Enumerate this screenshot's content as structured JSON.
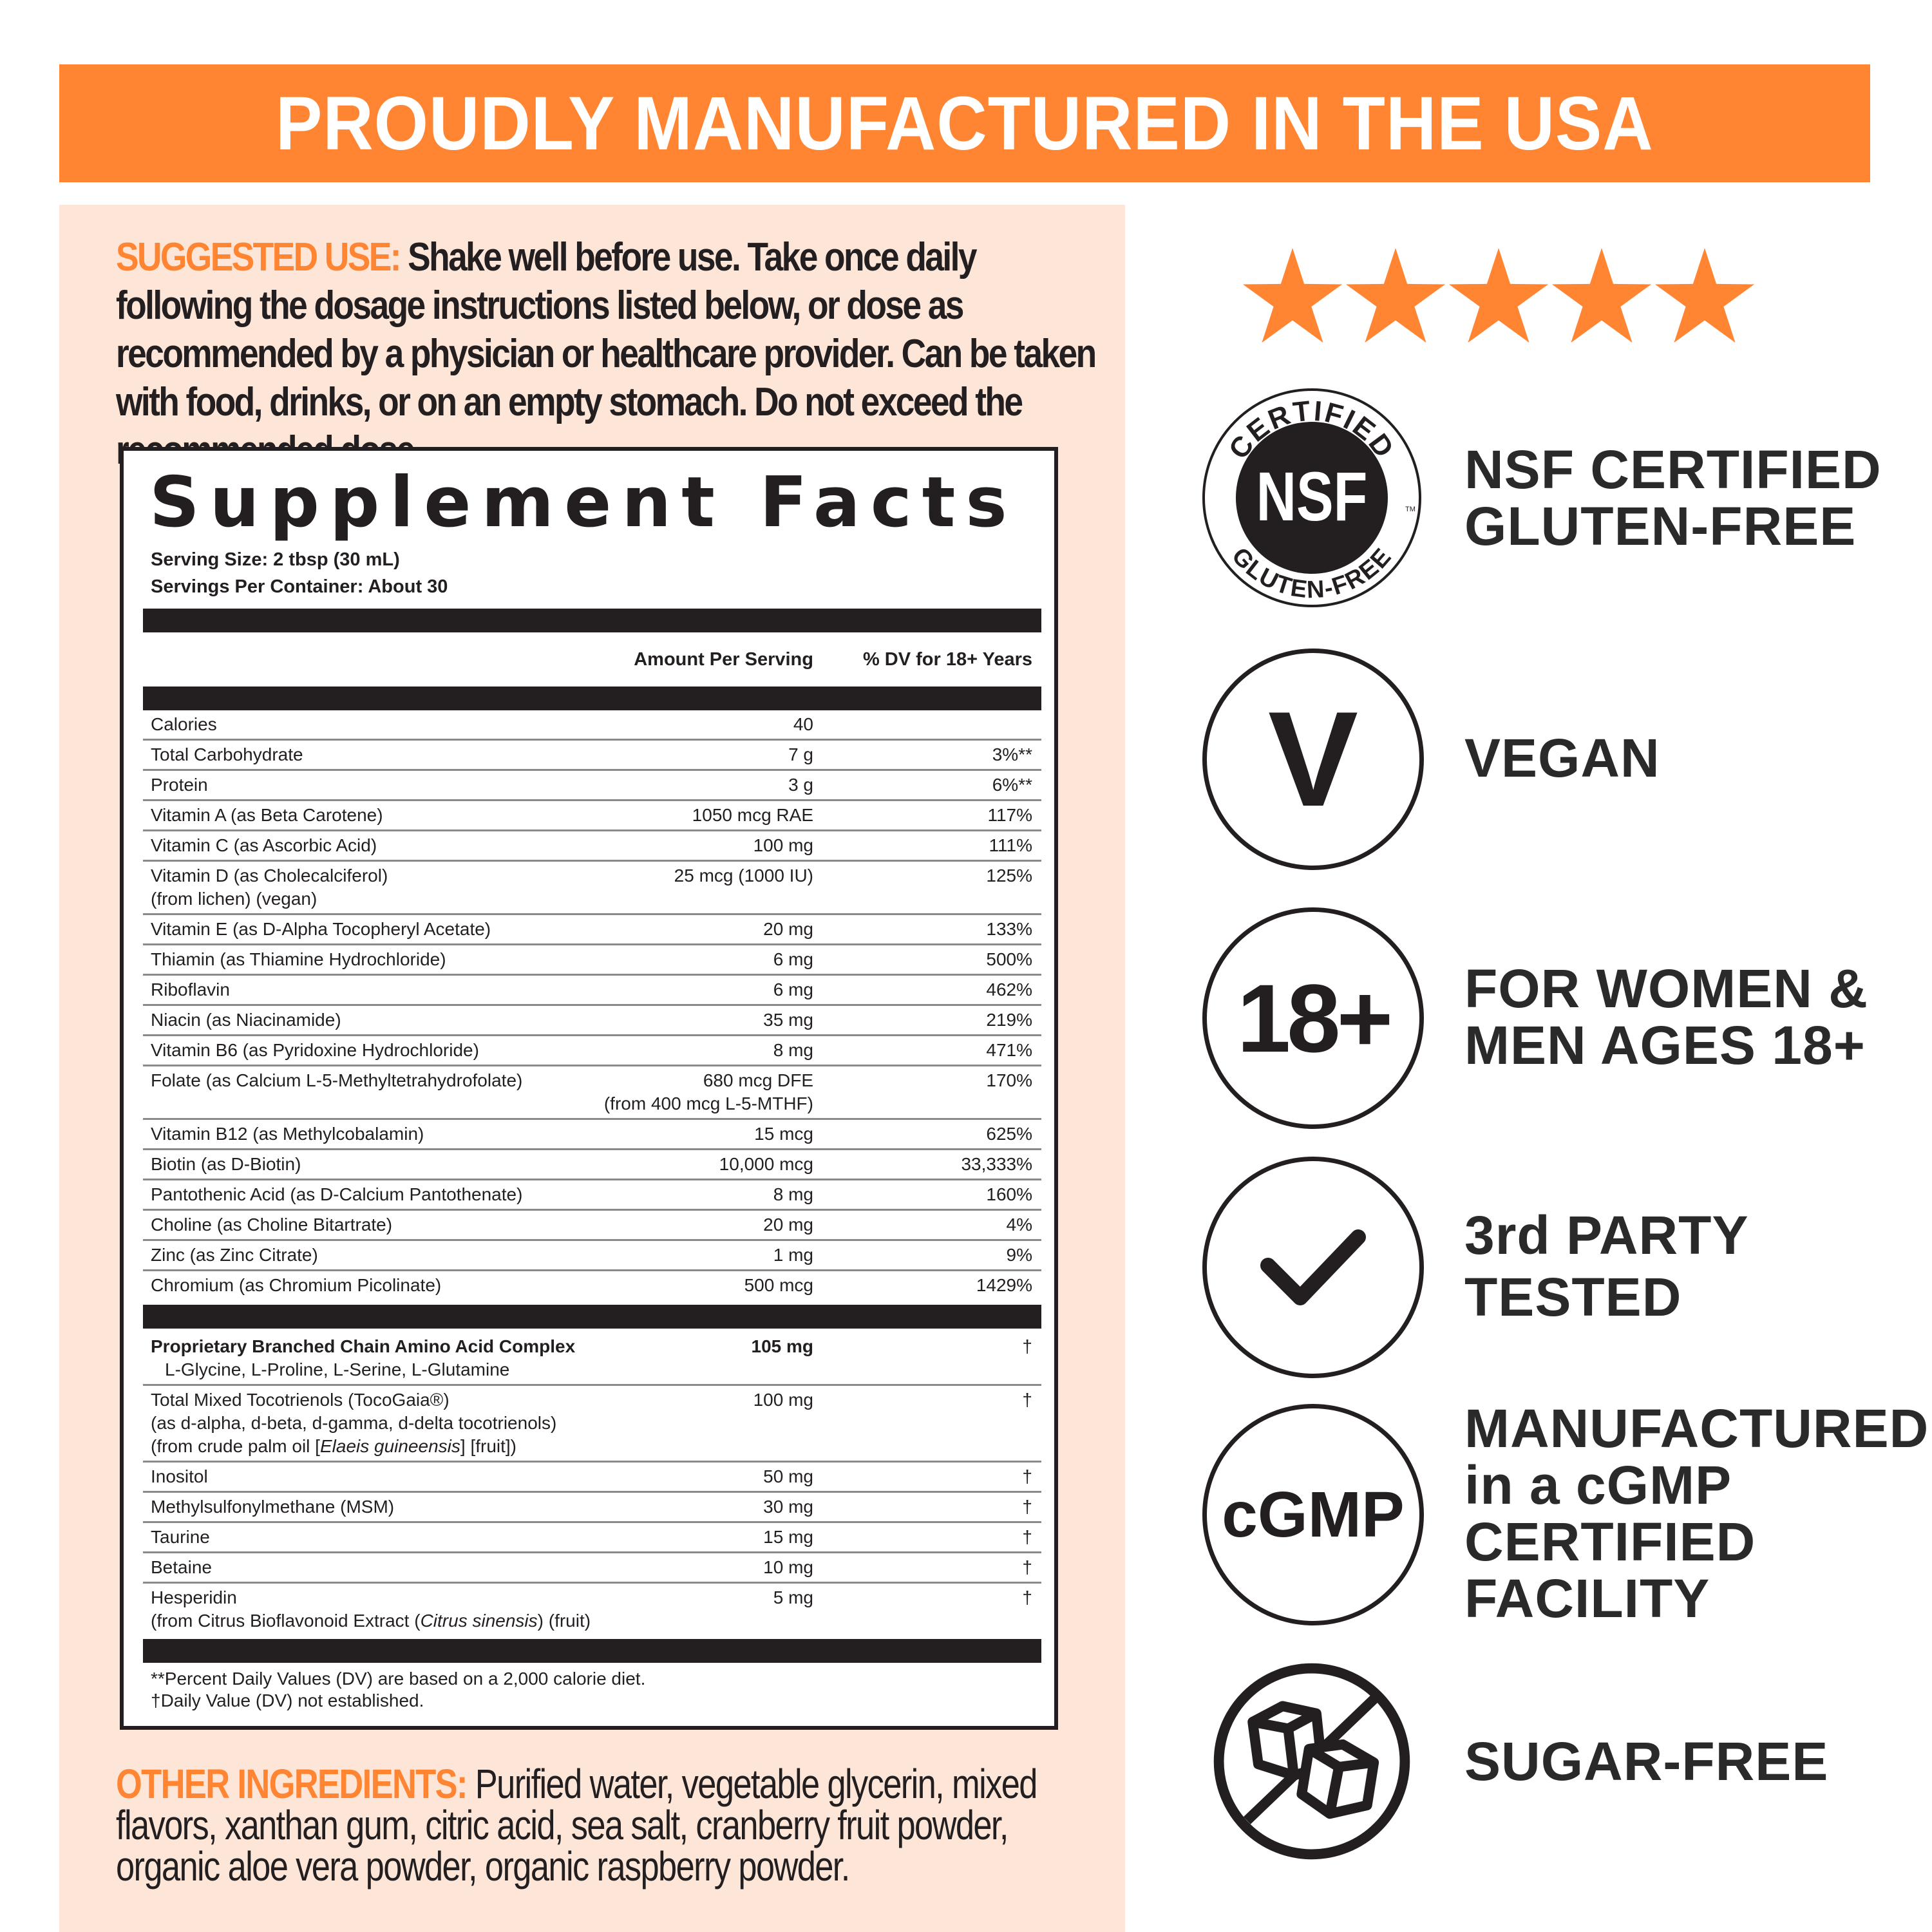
{
  "banner": {
    "text": "PROUDLY MANUFACTURED IN THE USA"
  },
  "colors": {
    "accent": "#ff8533",
    "panel": "#fde6d8",
    "ink": "#231f20"
  },
  "suggested_use": {
    "label": "SUGGESTED USE:",
    "text": " Shake well before use. Take once daily following the dosage instructions listed below, or dose as recommended by a physician or healthcare provider. Can be taken with food, drinks, or on an empty stomach. Do  not exceed the recommended dose."
  },
  "facts": {
    "title": "Supplement Facts",
    "serving_size": "Serving Size: 2 tbsp (30 mL)",
    "servings_per_container": "Servings Per Container: About 30",
    "col_amount": "Amount Per Serving",
    "col_dv": "% DV for 18+ Years",
    "rows": [
      {
        "name": [
          [
            {
              "t": "Calories"
            }
          ]
        ],
        "amount": [
          "40"
        ],
        "dv": ""
      },
      {
        "name": [
          [
            {
              "t": "Total Carbohydrate"
            }
          ]
        ],
        "amount": [
          "7 g"
        ],
        "dv": "3%**"
      },
      {
        "name": [
          [
            {
              "t": "Protein"
            }
          ]
        ],
        "amount": [
          "3 g"
        ],
        "dv": "6%**"
      },
      {
        "name": [
          [
            {
              "t": "Vitamin A (as Beta Carotene)"
            }
          ]
        ],
        "amount": [
          "1050 mcg RAE"
        ],
        "dv": "117%"
      },
      {
        "name": [
          [
            {
              "t": "Vitamin C (as Ascorbic Acid)"
            }
          ]
        ],
        "amount": [
          "100 mg"
        ],
        "dv": "111%"
      },
      {
        "name": [
          [
            {
              "t": "Vitamin D (as Cholecalciferol)"
            }
          ],
          [
            {
              "t": "(from lichen) (vegan)"
            }
          ]
        ],
        "amount": [
          "25 mcg (1000 IU)"
        ],
        "dv": "125%"
      },
      {
        "name": [
          [
            {
              "t": "Vitamin E (as D-Alpha Tocopheryl Acetate)"
            }
          ]
        ],
        "amount": [
          "20 mg"
        ],
        "dv": "133%"
      },
      {
        "name": [
          [
            {
              "t": "Thiamin (as Thiamine Hydrochloride)"
            }
          ]
        ],
        "amount": [
          "6 mg"
        ],
        "dv": "500%"
      },
      {
        "name": [
          [
            {
              "t": "Riboflavin"
            }
          ]
        ],
        "amount": [
          "6 mg"
        ],
        "dv": "462%"
      },
      {
        "name": [
          [
            {
              "t": "Niacin (as Niacinamide)"
            }
          ]
        ],
        "amount": [
          "35 mg"
        ],
        "dv": "219%"
      },
      {
        "name": [
          [
            {
              "t": "Vitamin B6 (as Pyridoxine Hydrochloride)"
            }
          ]
        ],
        "amount": [
          "8 mg"
        ],
        "dv": "471%"
      },
      {
        "name": [
          [
            {
              "t": "Folate (as Calcium L-5-Methyltetrahydrofolate)"
            }
          ]
        ],
        "amount": [
          "680 mcg DFE",
          "(from 400 mcg L-5-MTHF)"
        ],
        "dv": "170%"
      },
      {
        "name": [
          [
            {
              "t": "Vitamin B12 (as Methylcobalamin)"
            }
          ]
        ],
        "amount": [
          "15 mcg"
        ],
        "dv": "625%"
      },
      {
        "name": [
          [
            {
              "t": "Biotin (as D-Biotin)"
            }
          ]
        ],
        "amount": [
          "10,000 mcg"
        ],
        "dv": "33,333%"
      },
      {
        "name": [
          [
            {
              "t": "Pantothenic Acid (as D-Calcium Pantothenate)"
            }
          ]
        ],
        "amount": [
          "8 mg"
        ],
        "dv": "160%"
      },
      {
        "name": [
          [
            {
              "t": "Choline (as Choline Bitartrate)"
            }
          ]
        ],
        "amount": [
          "20 mg"
        ],
        "dv": "4%"
      },
      {
        "name": [
          [
            {
              "t": "Zinc (as Zinc Citrate)"
            }
          ]
        ],
        "amount": [
          "1 mg"
        ],
        "dv": "9%"
      },
      {
        "name": [
          [
            {
              "t": "Chromium (as Chromium Picolinate)"
            }
          ]
        ],
        "amount": [
          "500 mcg"
        ],
        "dv": "1429%"
      }
    ],
    "rows2": [
      {
        "bold": true,
        "name": [
          [
            {
              "t": "Proprietary Branched Chain Amino Acid Complex"
            }
          ],
          [
            {
              "t": "L-Glycine, L-Proline, L-Serine, L-Glutamine",
              "indent": true
            }
          ]
        ],
        "amount": [
          "105 mg"
        ],
        "dv": "†"
      },
      {
        "name": [
          [
            {
              "t": "Total Mixed Tocotrienols (TocoGaia®)"
            }
          ],
          [
            {
              "t": "(as d-alpha, d-beta, d-gamma, d-delta tocotrienols)"
            }
          ],
          [
            {
              "t": "(from crude palm oil ["
            },
            {
              "t": "Elaeis guineensis",
              "i": true
            },
            {
              "t": "] [fruit])"
            }
          ]
        ],
        "amount": [
          "100 mg"
        ],
        "dv": "†"
      },
      {
        "name": [
          [
            {
              "t": "Inositol"
            }
          ]
        ],
        "amount": [
          "50 mg"
        ],
        "dv": "†"
      },
      {
        "name": [
          [
            {
              "t": "Methylsulfonylmethane (MSM)"
            }
          ]
        ],
        "amount": [
          "30 mg"
        ],
        "dv": "†"
      },
      {
        "name": [
          [
            {
              "t": "Taurine"
            }
          ]
        ],
        "amount": [
          "15 mg"
        ],
        "dv": "†"
      },
      {
        "name": [
          [
            {
              "t": "Betaine"
            }
          ]
        ],
        "amount": [
          "10 mg"
        ],
        "dv": "†"
      },
      {
        "name": [
          [
            {
              "t": "Hesperidin"
            }
          ],
          [
            {
              "t": "(from Citrus Bioflavonoid Extract ("
            },
            {
              "t": "Citrus sinensis",
              "i": true
            },
            {
              "t": ") (fruit)"
            }
          ]
        ],
        "amount": [
          "5 mg"
        ],
        "dv": "†"
      }
    ],
    "footnotes": [
      "**Percent Daily Values (DV) are based on a 2,000 calorie diet.",
      "†Daily Value (DV) not established."
    ]
  },
  "other_ingredients": {
    "label": "OTHER INGREDIENTS:",
    "text": " Purified water, vegetable glycerin, mixed flavors, xanthan gum, citric acid, sea salt, cranberry fruit powder, organic aloe vera powder, organic raspberry powder."
  },
  "rating": {
    "stars": 5,
    "max": 5
  },
  "features": [
    {
      "icon": "nsf-gluten-free-badge",
      "badge": {
        "top": "CERTIFIED",
        "center": "NSF",
        "bottom": "GLUTEN-FREE",
        "tm": "TM"
      },
      "label": [
        "NSF CERTIFIED",
        "GLUTEN-FREE"
      ]
    },
    {
      "icon": "vegan-icon",
      "glyph": "V",
      "label": [
        "VEGAN"
      ]
    },
    {
      "icon": "age-18-plus-icon",
      "glyph": "18+",
      "label": [
        "FOR WOMEN &",
        "MEN AGES 18+"
      ]
    },
    {
      "icon": "checkmark-icon",
      "label": [
        "3rd PARTY",
        "TESTED"
      ]
    },
    {
      "icon": "cgmp-icon",
      "glyph": "cGMP",
      "label": [
        "MANUFACTURED",
        "in a cGMP",
        "CERTIFIED",
        "FACILITY"
      ]
    },
    {
      "icon": "no-sugar-icon",
      "label": [
        "SUGAR-FREE"
      ]
    }
  ]
}
